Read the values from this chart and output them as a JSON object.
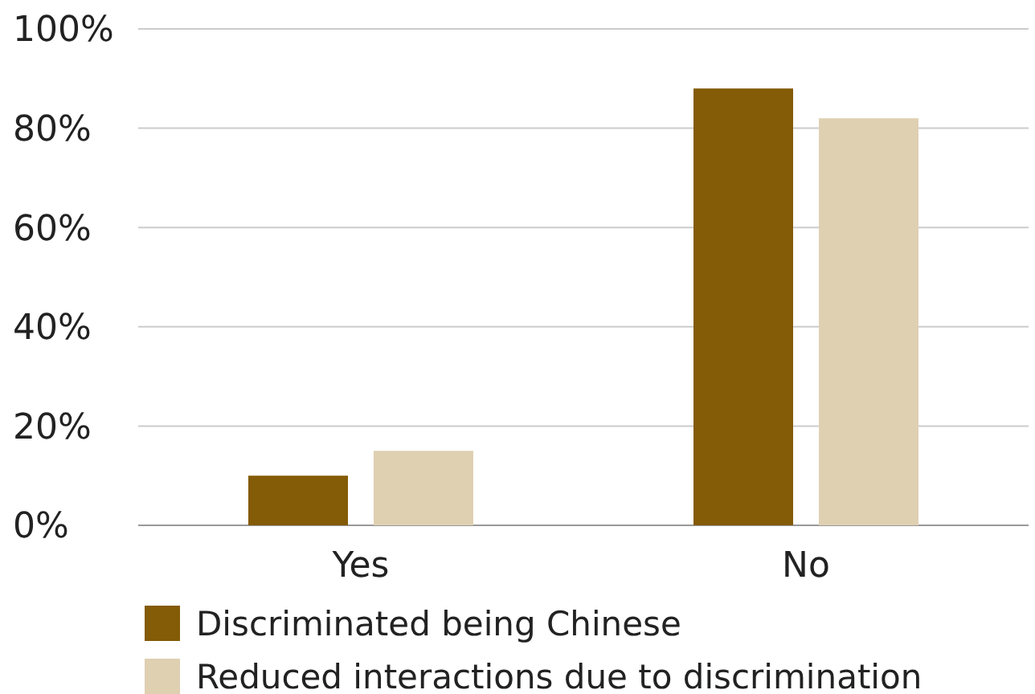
{
  "chart_data": {
    "type": "bar",
    "categories": [
      "Yes",
      "No"
    ],
    "series": [
      {
        "name": "Discriminated being Chinese",
        "color": "#845b06",
        "values": [
          10,
          88
        ]
      },
      {
        "name": "Reduced interactions due to discrimination",
        "color": "#dfd0b2",
        "values": [
          15,
          82
        ]
      }
    ],
    "ylim": [
      0,
      100
    ],
    "yticks": [
      {
        "value": 0,
        "label": "0%"
      },
      {
        "value": 20,
        "label": "20%"
      },
      {
        "value": 40,
        "label": "40%"
      },
      {
        "value": 60,
        "label": "60%"
      },
      {
        "value": 80,
        "label": "80%"
      },
      {
        "value": 100,
        "label": "100%"
      }
    ],
    "grid": "y",
    "legend": "bottom"
  }
}
